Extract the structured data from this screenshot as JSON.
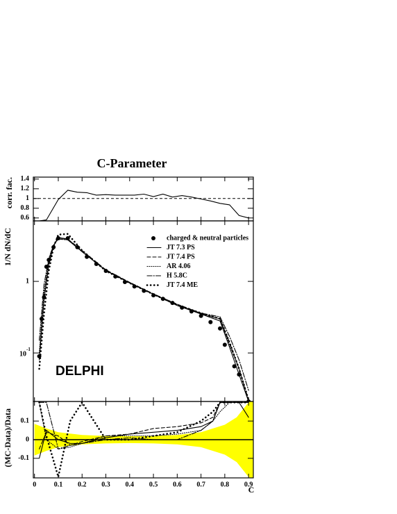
{
  "title": "C-Parameter",
  "x_label": "C",
  "chart_data": [
    {
      "type": "line",
      "y_label": "corr. fac.",
      "xlim": [
        -0.005,
        0.92
      ],
      "ylim": [
        0.54,
        1.44
      ],
      "yticks": [
        0.6,
        0.8,
        1,
        1.2,
        1.4
      ],
      "reference": 1,
      "series": [
        {
          "name": null,
          "color": "#000000",
          "x": [
            0.02,
            0.05,
            0.1,
            0.14,
            0.18,
            0.22,
            0.26,
            0.3,
            0.34,
            0.38,
            0.42,
            0.46,
            0.5,
            0.54,
            0.58,
            0.62,
            0.66,
            0.7,
            0.74,
            0.78,
            0.82,
            0.86,
            0.9
          ],
          "values": [
            0.54,
            0.56,
            0.98,
            1.17,
            1.13,
            1.12,
            1.07,
            1.08,
            1.07,
            1.07,
            1.07,
            1.09,
            1.04,
            1.09,
            1.03,
            1.06,
            1.03,
            0.99,
            0.95,
            0.9,
            0.87,
            0.65,
            0.6
          ],
          "dash": "solid"
        }
      ]
    },
    {
      "type": "line",
      "y_label": "1/N dN/dC",
      "log_scale": true,
      "xlim": [
        -0.005,
        0.92
      ],
      "ylim": [
        0.021,
        7
      ],
      "yticks": [
        {
          "value": 0.1,
          "label": "10",
          "exponent": "-1"
        },
        1
      ],
      "annotation": "DELPHI",
      "legend": "upper right",
      "x": [
        0.02,
        0.04,
        0.06,
        0.08,
        0.1,
        0.14,
        0.2,
        0.3,
        0.4,
        0.5,
        0.6,
        0.7,
        0.78,
        0.82,
        0.86,
        0.9
      ],
      "series": [
        {
          "name": "charged & neutral particles",
          "color": "#000000",
          "marker": "dot",
          "x": [
            0.02,
            0.03,
            0.04,
            0.05,
            0.06,
            0.08,
            0.1,
            0.14,
            0.18,
            0.22,
            0.26,
            0.3,
            0.34,
            0.38,
            0.42,
            0.46,
            0.5,
            0.54,
            0.58,
            0.62,
            0.66,
            0.7,
            0.74,
            0.78,
            0.8,
            0.84,
            0.86,
            0.9
          ],
          "values": [
            0.09,
            0.3,
            0.6,
            1.6,
            2.0,
            3.0,
            4.0,
            4.0,
            3.0,
            2.2,
            1.75,
            1.4,
            1.17,
            0.98,
            0.85,
            0.74,
            0.64,
            0.57,
            0.5,
            0.43,
            0.38,
            0.33,
            0.27,
            0.22,
            0.13,
            0.065,
            0.05,
            0.021
          ]
        },
        {
          "name": "JT 7.3 PS",
          "color": "#000000",
          "dash": "solid",
          "values": [
            0.08,
            0.55,
            1.7,
            3.1,
            4.1,
            3.9,
            2.6,
            1.42,
            0.95,
            0.66,
            0.46,
            0.35,
            0.28,
            0.12,
            0.05,
            0.021
          ]
        },
        {
          "name": "JT 7.4 PS",
          "color": "#000000",
          "dash": "dashed",
          "values": [
            0.085,
            0.6,
            1.8,
            3.2,
            4.1,
            3.9,
            2.7,
            1.45,
            0.97,
            0.67,
            0.48,
            0.36,
            0.3,
            0.14,
            0.06,
            0.022
          ]
        },
        {
          "name": "AR 4.06",
          "color": "#000000",
          "dash": "dotted",
          "values": [
            0.1,
            0.7,
            2.0,
            3.2,
            4.0,
            3.8,
            2.6,
            1.42,
            0.95,
            0.66,
            0.47,
            0.35,
            0.3,
            0.13,
            0.06,
            0.022
          ]
        },
        {
          "name": "H 5.8C",
          "color": "#000000",
          "dash": "dashdot",
          "values": [
            0.15,
            0.9,
            2.1,
            3.2,
            3.9,
            3.8,
            2.6,
            1.42,
            0.95,
            0.66,
            0.46,
            0.36,
            0.32,
            0.17,
            0.08,
            0.03
          ]
        },
        {
          "name": "JT 7.4 ME",
          "color": "#000000",
          "dash": "bigdots",
          "values": [
            0.06,
            0.35,
            1.4,
            3.0,
            4.5,
            4.6,
            2.7,
            1.4,
            0.95,
            0.66,
            0.47,
            0.36,
            0.3,
            0.14,
            0.06,
            0.022
          ]
        }
      ]
    },
    {
      "type": "line",
      "y_label": "(MC-Data)/Data",
      "xlim": [
        -0.005,
        0.92
      ],
      "ylim": [
        -0.205,
        0.205
      ],
      "yticks": [
        -0.1,
        0,
        0.1
      ],
      "reference": 0,
      "xticks": [
        0,
        0.1,
        0.2,
        0.3,
        0.4,
        0.5,
        0.6,
        0.7,
        0.8,
        0.9
      ],
      "band": {
        "color": "#ffff00",
        "x": [
          0,
          0.05,
          0.1,
          0.2,
          0.3,
          0.4,
          0.5,
          0.6,
          0.7,
          0.8,
          0.85,
          0.9,
          0.92
        ],
        "errors": [
          0.085,
          0.06,
          0.04,
          0.025,
          0.02,
          0.018,
          0.02,
          0.025,
          0.04,
          0.08,
          0.12,
          0.2,
          0.22
        ]
      },
      "x": [
        0.02,
        0.05,
        0.1,
        0.15,
        0.2,
        0.3,
        0.4,
        0.5,
        0.6,
        0.7,
        0.75,
        0.78,
        0.82,
        0.86,
        0.9
      ],
      "series": [
        {
          "name": "JT 7.3 PS",
          "color": "#000000",
          "dash": "solid",
          "values": [
            -0.1,
            0.05,
            0.0,
            -0.02,
            -0.02,
            0.01,
            0.03,
            0.04,
            0.05,
            0.07,
            0.1,
            0.2,
            0.2,
            0.2,
            0.12
          ]
        },
        {
          "name": "JT 7.4 PS",
          "color": "#000000",
          "dash": "dashed",
          "values": [
            -0.05,
            0.04,
            0.02,
            -0.03,
            -0.01,
            0.02,
            0.03,
            0.06,
            0.07,
            0.09,
            0.12,
            0.2,
            0.2,
            0.2,
            0.2
          ]
        },
        {
          "name": "AR 4.06",
          "color": "#000000",
          "dash": "dotted",
          "values": [
            0.2,
            0.0,
            -0.05,
            -0.04,
            -0.02,
            0.02,
            0.02,
            0.02,
            0.03,
            0.05,
            0.1,
            0.15,
            0.2,
            0.2,
            0.2
          ]
        },
        {
          "name": "H 5.8C",
          "color": "#000000",
          "dash": "dashdot",
          "values": [
            0.2,
            0.2,
            -0.05,
            -0.03,
            -0.02,
            0.0,
            0.01,
            0.0,
            0.0,
            0.05,
            0.1,
            0.2,
            0.2,
            0.2,
            0.2
          ]
        },
        {
          "name": "JT 7.4 ME",
          "color": "#000000",
          "dash": "bigdots",
          "values": [
            0.2,
            0.02,
            -0.2,
            0.1,
            0.2,
            0.0,
            0.0,
            0.02,
            0.04,
            0.1,
            0.15,
            0.2,
            0.2,
            0.2,
            0.2
          ]
        }
      ]
    }
  ]
}
